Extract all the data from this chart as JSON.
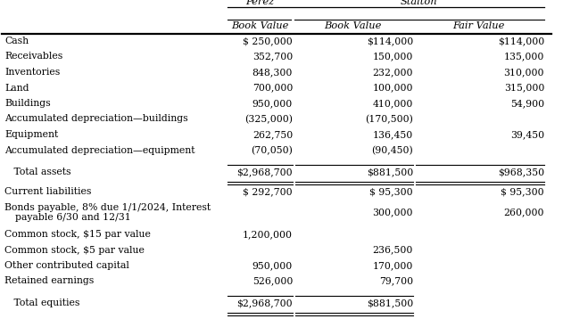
{
  "rows": [
    {
      "label": "Cash",
      "perez_bv": "$ 250,000",
      "stalton_bv": "$114,000",
      "stalton_fv": "$114,000",
      "total": false,
      "multiline": false
    },
    {
      "label": "Receivables",
      "perez_bv": "352,700",
      "stalton_bv": "150,000",
      "stalton_fv": "135,000",
      "total": false,
      "multiline": false
    },
    {
      "label": "Inventories",
      "perez_bv": "848,300",
      "stalton_bv": "232,000",
      "stalton_fv": "310,000",
      "total": false,
      "multiline": false
    },
    {
      "label": "Land",
      "perez_bv": "700,000",
      "stalton_bv": "100,000",
      "stalton_fv": "315,000",
      "total": false,
      "multiline": false
    },
    {
      "label": "Buildings",
      "perez_bv": "950,000",
      "stalton_bv": "410,000",
      "stalton_fv": "54,900",
      "total": false,
      "multiline": false
    },
    {
      "label": "Accumulated depreciation—buildings",
      "perez_bv": "(325,000)",
      "stalton_bv": "(170,500)",
      "stalton_fv": "",
      "total": false,
      "multiline": false
    },
    {
      "label": "Equipment",
      "perez_bv": "262,750",
      "stalton_bv": "136,450",
      "stalton_fv": "39,450",
      "total": false,
      "multiline": false
    },
    {
      "label": "Accumulated depreciation—equipment",
      "perez_bv": "(70,050)",
      "stalton_bv": "(90,450)",
      "stalton_fv": "",
      "total": false,
      "multiline": false
    },
    {
      "label": "   Total assets",
      "perez_bv": "$2,968,700",
      "stalton_bv": "$881,500",
      "stalton_fv": "$968,350",
      "total": true,
      "multiline": false
    },
    {
      "label": "Current liabilities",
      "perez_bv": "$ 292,700",
      "stalton_bv": "$ 95,300",
      "stalton_fv": "$ 95,300",
      "total": false,
      "multiline": false
    },
    {
      "label": "Bonds payable, 8% due 1/1/2024, Interest\n   payable 6/30 and 12/31",
      "perez_bv": "",
      "stalton_bv": "300,000",
      "stalton_fv": "260,000",
      "total": false,
      "multiline": true
    },
    {
      "label": "Common stock, $15 par value",
      "perez_bv": "1,200,000",
      "stalton_bv": "",
      "stalton_fv": "",
      "total": false,
      "multiline": false
    },
    {
      "label": "Common stock, $5 par value",
      "perez_bv": "",
      "stalton_bv": "236,500",
      "stalton_fv": "",
      "total": false,
      "multiline": false
    },
    {
      "label": "Other contributed capital",
      "perez_bv": "950,000",
      "stalton_bv": "170,000",
      "stalton_fv": "",
      "total": false,
      "multiline": false
    },
    {
      "label": "Retained earnings",
      "perez_bv": "526,000",
      "stalton_bv": "79,700",
      "stalton_fv": "",
      "total": false,
      "multiline": false
    },
    {
      "label": "   Total equities",
      "perez_bv": "$2,968,700",
      "stalton_bv": "$881,500",
      "stalton_fv": "",
      "total": true,
      "multiline": false
    }
  ],
  "bg_color": "#ffffff",
  "text_color": "#000000",
  "font_size": 7.8,
  "header_font_size": 8.2,
  "perez_header": "Perez",
  "stalton_header": "Stalton",
  "sub_headers": [
    "Book Value",
    "Book Value",
    "Fair Value"
  ]
}
